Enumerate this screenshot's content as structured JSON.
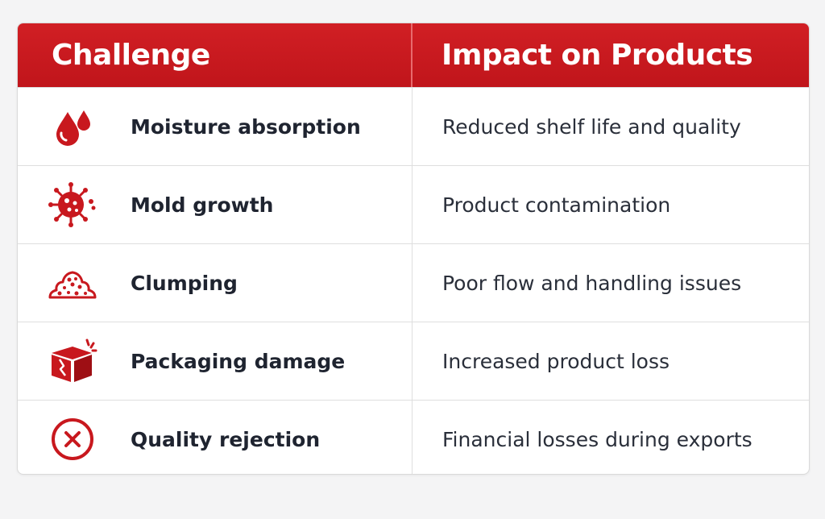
{
  "colors": {
    "accent": "#c8181e",
    "text_dark": "#1f2430"
  },
  "header": {
    "challenge": "Challenge",
    "impact": "Impact on Products"
  },
  "rows": [
    {
      "icon": "water-drops-icon",
      "challenge": "Moisture absorption",
      "impact": "Reduced shelf life and quality"
    },
    {
      "icon": "mold-virus-icon",
      "challenge": "Mold growth",
      "impact": "Product contamination"
    },
    {
      "icon": "clump-pile-icon",
      "challenge": "Clumping",
      "impact": "Poor flow and handling issues"
    },
    {
      "icon": "damaged-box-icon",
      "challenge": "Packaging damage",
      "impact": "Increased product loss"
    },
    {
      "icon": "reject-x-circle-icon",
      "challenge": "Quality rejection",
      "impact": "Financial losses during exports"
    }
  ]
}
